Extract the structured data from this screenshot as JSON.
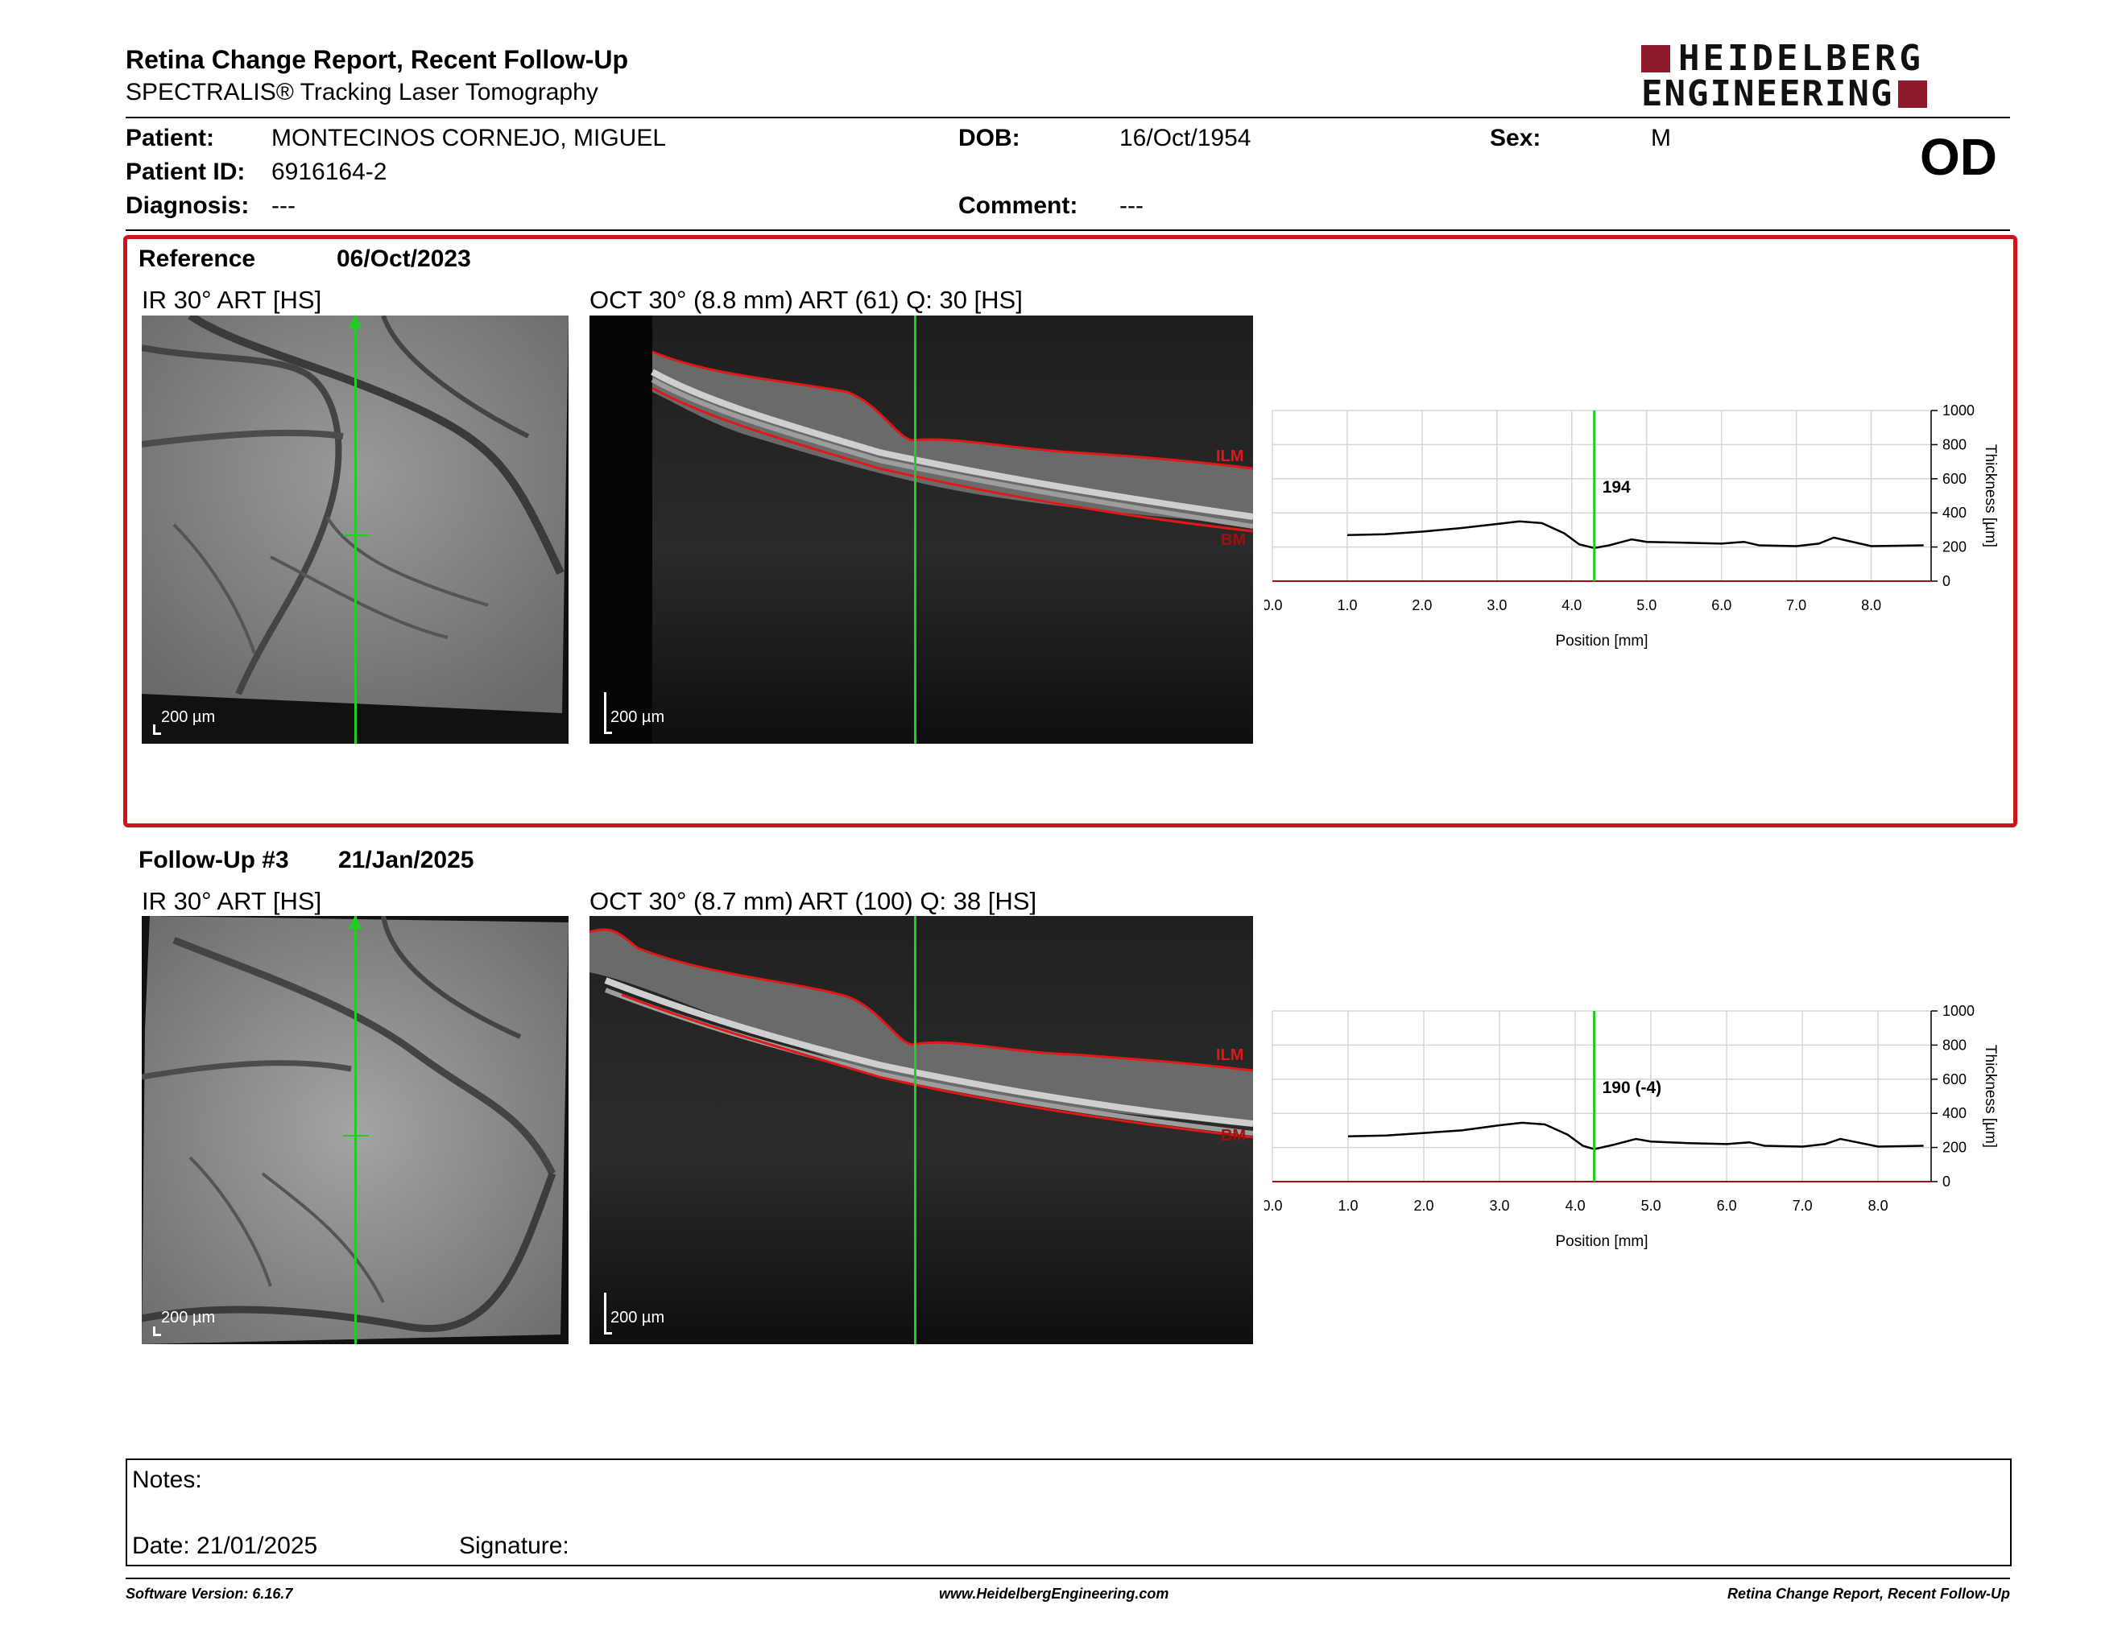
{
  "header": {
    "title": "Retina Change Report, Recent Follow-Up",
    "subtitle": "SPECTRALIS® Tracking Laser Tomography",
    "logo_line1": "HEIDELBERG",
    "logo_line2": "ENGINEERING",
    "eye": "OD"
  },
  "patient": {
    "patient_label": "Patient:",
    "patient_value": "MONTECINOS CORNEJO, MIGUEL",
    "id_label": "Patient ID:",
    "id_value": "6916164-2",
    "diagnosis_label": "Diagnosis:",
    "diagnosis_value": "---",
    "dob_label": "DOB:",
    "dob_value": "16/Oct/1954",
    "comment_label": "Comment:",
    "comment_value": "---",
    "sex_label": "Sex:",
    "sex_value": "M"
  },
  "reference": {
    "label": "Reference",
    "date": "06/Oct/2023",
    "ir_title": "IR 30° ART [HS]",
    "oct_title": "OCT 30° (8.8 mm) ART (61) Q: 30 [HS]",
    "ir_scale": "200 µm",
    "oct_scale": "200 µm",
    "ilm": "ILM",
    "bm": "BM"
  },
  "followup": {
    "label": "Follow-Up #3",
    "date": "21/Jan/2025",
    "ir_title": "IR 30° ART [HS]",
    "oct_title": "OCT 30° (8.7 mm) ART (100) Q: 38 [HS]",
    "ir_scale": "200 µm",
    "oct_scale": "200 µm",
    "ilm": "ILM",
    "bm": "BM"
  },
  "chart_data": [
    {
      "type": "line",
      "xlabel": "Position [mm]",
      "ylabel": "Thickness [µm]",
      "xlim": [
        0,
        8.8
      ],
      "ylim": [
        0,
        1000
      ],
      "x_ticks": [
        "0.0",
        "1.0",
        "2.0",
        "3.0",
        "4.0",
        "5.0",
        "6.0",
        "7.0",
        "8.0"
      ],
      "y_ticks": [
        "0",
        "200",
        "400",
        "600",
        "800",
        "1000"
      ],
      "cursor_x": 4.3,
      "cursor_label": "194",
      "series": [
        {
          "x": [
            1.0,
            1.5,
            2.0,
            2.5,
            3.0,
            3.3,
            3.6,
            3.9,
            4.1,
            4.3,
            4.5,
            4.8,
            5.0,
            5.5,
            6.0,
            6.3,
            6.5,
            7.0,
            7.3,
            7.5,
            8.0,
            8.7
          ],
          "y": [
            270,
            275,
            290,
            310,
            335,
            350,
            340,
            280,
            215,
            194,
            210,
            245,
            230,
            225,
            220,
            230,
            210,
            205,
            220,
            255,
            205,
            210
          ]
        }
      ]
    },
    {
      "type": "line",
      "xlabel": "Position [mm]",
      "ylabel": "Thickness [µm]",
      "xlim": [
        0,
        8.7
      ],
      "ylim": [
        0,
        1000
      ],
      "x_ticks": [
        "0.0",
        "1.0",
        "2.0",
        "3.0",
        "4.0",
        "5.0",
        "6.0",
        "7.0",
        "8.0"
      ],
      "y_ticks": [
        "0",
        "200",
        "400",
        "600",
        "800",
        "1000"
      ],
      "cursor_x": 4.25,
      "cursor_label": "190 (-4)",
      "series": [
        {
          "x": [
            1.0,
            1.5,
            2.0,
            2.5,
            3.0,
            3.3,
            3.6,
            3.9,
            4.1,
            4.25,
            4.5,
            4.8,
            5.0,
            5.5,
            6.0,
            6.3,
            6.5,
            7.0,
            7.3,
            7.5,
            8.0,
            8.6
          ],
          "y": [
            265,
            270,
            285,
            300,
            330,
            345,
            335,
            275,
            210,
            190,
            215,
            250,
            235,
            225,
            220,
            230,
            210,
            205,
            220,
            250,
            205,
            210
          ]
        }
      ]
    }
  ],
  "notes": {
    "notes_label": "Notes:",
    "date_label": "Date: 21/01/2025",
    "signature_label": "Signature:"
  },
  "footer": {
    "left": "Software Version: 6.16.7",
    "center": "www.HeidelbergEngineering.com",
    "right": "Retina Change Report, Recent Follow-Up"
  },
  "colors": {
    "panel_border": "#c8161d",
    "cursor": "#22cc22",
    "ilm_line": "#e01818",
    "logo_red": "#8e1b2c"
  }
}
